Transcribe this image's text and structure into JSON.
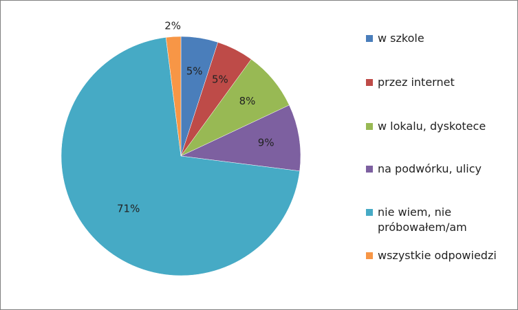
{
  "chart_data": {
    "type": "pie",
    "categories": [
      "w szkole",
      "przez internet",
      "w lokalu, dyskotece",
      "na podwórku, ulicy",
      "nie wiem, nie próbowałem/am",
      "wszystkie odpowiedzi"
    ],
    "values": [
      5,
      5,
      8,
      9,
      71,
      2
    ],
    "data_labels": [
      "5%",
      "5%",
      "8%",
      "9%",
      "71%",
      "2%"
    ],
    "colors": [
      "#4a7ebb",
      "#be4b48",
      "#98b954",
      "#7d60a0",
      "#46aac5",
      "#f79646"
    ],
    "title": "",
    "legend_position": "right",
    "start_angle": "12 o'clock",
    "direction": "clockwise"
  }
}
